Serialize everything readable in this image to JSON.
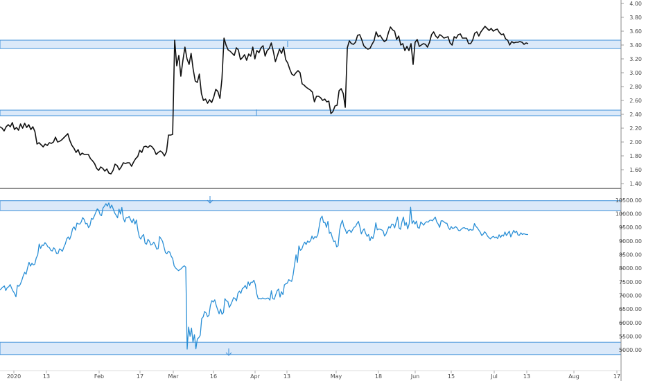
{
  "colors": {
    "upper_series": "#111111",
    "lower_series": "#2a8fd6",
    "zone_fill": "#dbe9f9",
    "zone_stroke": "#3d8fd9",
    "axis_line": "#888888",
    "divider": "#222222"
  },
  "chart_data": [
    {
      "type": "line",
      "panel": "upper",
      "series": [
        {
          "values": [
            2.22,
            2.2,
            2.16,
            2.22,
            2.25,
            2.22,
            2.28,
            2.18,
            2.21,
            2.17,
            2.26,
            2.2,
            2.27,
            2.21,
            2.25,
            2.18,
            2.22,
            2.15,
            1.97,
            1.99,
            1.96,
            1.93,
            1.97,
            1.95,
            1.99,
            1.98,
            2.0,
            2.07,
            2.0,
            2.01,
            2.03,
            2.06,
            2.09,
            2.12,
            2.02,
            1.95,
            1.91,
            1.85,
            1.89,
            1.81,
            1.84,
            1.82,
            1.82,
            1.82,
            1.76,
            1.73,
            1.69,
            1.62,
            1.59,
            1.64,
            1.62,
            1.58,
            1.61,
            1.55,
            1.54,
            1.59,
            1.68,
            1.66,
            1.6,
            1.64,
            1.7,
            1.69,
            1.7,
            1.7,
            1.65,
            1.71,
            1.76,
            1.79,
            1.88,
            1.85,
            1.93,
            1.94,
            1.92,
            1.95,
            1.93,
            1.89,
            1.82,
            1.85,
            1.87,
            1.85,
            1.8,
            1.86,
            2.1,
            2.1,
            2.11,
            3.47,
            3.1,
            3.25,
            2.95,
            3.18,
            3.37,
            3.2,
            3.12,
            3.28,
            3.05,
            2.88,
            2.86,
            2.98,
            2.7,
            2.6,
            2.62,
            2.56,
            2.61,
            2.57,
            2.65,
            2.76,
            2.73,
            2.63,
            2.91,
            3.5,
            3.4,
            3.33,
            3.31,
            3.28,
            3.25,
            3.36,
            3.33,
            3.19,
            3.22,
            3.26,
            3.18,
            3.27,
            3.24,
            3.37,
            3.2,
            3.32,
            3.29,
            3.36,
            3.39,
            3.24,
            3.32,
            3.35,
            3.43,
            3.31,
            3.16,
            3.25,
            3.34,
            3.28,
            3.37,
            3.19,
            3.14,
            3.05,
            2.98,
            2.96,
            3.0,
            3.03,
            3.0,
            2.84,
            2.82,
            2.79,
            2.77,
            2.75,
            2.72,
            2.58,
            2.66,
            2.66,
            2.64,
            2.6,
            2.62,
            2.58,
            2.59,
            2.41,
            2.44,
            2.52,
            2.53,
            2.74,
            2.77,
            2.7,
            2.5,
            3.36,
            3.46,
            3.42,
            3.41,
            3.44,
            3.54,
            3.55,
            3.48,
            3.39,
            3.36,
            3.34,
            3.35,
            3.41,
            3.46,
            3.59,
            3.52,
            3.54,
            3.49,
            3.45,
            3.47,
            3.58,
            3.66,
            3.62,
            3.6,
            3.48,
            3.53,
            3.4,
            3.42,
            3.32,
            3.38,
            3.32,
            3.42,
            3.12,
            3.44,
            3.48,
            3.38,
            3.4,
            3.42,
            3.41,
            3.37,
            3.44,
            3.55,
            3.59,
            3.53,
            3.5,
            3.55,
            3.53,
            3.5,
            3.51,
            3.52,
            3.43,
            3.4,
            3.52,
            3.5,
            3.55,
            3.56,
            3.5,
            3.5,
            3.5,
            3.42,
            3.42,
            3.47,
            3.57,
            3.59,
            3.53,
            3.59,
            3.63,
            3.67,
            3.64,
            3.61,
            3.64,
            3.6,
            3.62,
            3.63,
            3.58,
            3.55,
            3.56,
            3.49,
            3.47,
            3.4,
            3.45,
            3.43,
            3.44,
            3.44,
            3.45,
            3.44,
            3.41,
            3.43,
            3.42
          ]
        }
      ],
      "ylim": [
        1.4,
        4.0
      ],
      "yticks": [
        "4.00",
        "3.80",
        "3.60",
        "3.40",
        "3.20",
        "3.00",
        "2.80",
        "2.60",
        "2.40",
        "2.20",
        "2.00",
        "1.80",
        "1.60",
        "1.40"
      ],
      "zones": [
        {
          "low": 3.35,
          "high": 3.47
        },
        {
          "low": 2.38,
          "high": 2.46
        }
      ]
    },
    {
      "type": "line",
      "panel": "lower",
      "series": [
        {
          "values": [
            7200,
            7260,
            7310,
            7350,
            7180,
            7290,
            7320,
            7400,
            7270,
            7160,
            7080,
            6950,
            7370,
            7340,
            7410,
            7550,
            7720,
            7850,
            7780,
            8020,
            8220,
            8080,
            8180,
            8120,
            8150,
            8380,
            8480,
            8890,
            8730,
            8850,
            8840,
            8940,
            8880,
            8780,
            8760,
            8660,
            8630,
            8750,
            8690,
            8540,
            8540,
            8710,
            8680,
            8620,
            8770,
            8890,
            9080,
            9150,
            9060,
            9210,
            9450,
            9520,
            9400,
            9660,
            9630,
            9620,
            9700,
            9860,
            9790,
            9630,
            9650,
            9490,
            9570,
            9830,
            9800,
            9920,
            10050,
            10180,
            10130,
            9970,
            9930,
            10210,
            10280,
            10370,
            10280,
            10400,
            10210,
            10320,
            10180,
            10030,
            9950,
            9850,
            10170,
            9990,
            10230,
            9840,
            9700,
            9860,
            9850,
            9900,
            9780,
            9670,
            9810,
            9620,
            9770,
            9400,
            9150,
            9070,
            9180,
            9240,
            8920,
            8880,
            9060,
            8990,
            8850,
            8880,
            8960,
            8850,
            8700,
            8720,
            9160,
            9080,
            8990,
            8780,
            8580,
            8530,
            8620,
            8590,
            8440,
            8360,
            8090,
            8010,
            7960,
            7910,
            7950,
            7990,
            8050,
            8090,
            8040,
            5030,
            5840,
            5500,
            5800,
            5280,
            5560,
            5040,
            5400,
            5450,
            5540,
            6150,
            6210,
            6410,
            6360,
            6220,
            6270,
            6630,
            6810,
            6760,
            6840,
            6640,
            6480,
            6330,
            6500,
            6310,
            6370,
            6880,
            6800,
            6780,
            6560,
            6660,
            6780,
            6920,
            6890,
            6800,
            7080,
            7160,
            7080,
            7250,
            7290,
            7370,
            7250,
            7500,
            7360,
            7490,
            7480,
            7560,
            7400,
            7050,
            6870,
            6890,
            6870,
            6910,
            6880,
            6870,
            6900,
            6900,
            6830,
            7170,
            6880,
            6860,
            7020,
            7170,
            7240,
            6940,
            7140,
            7030,
            7390,
            7430,
            7450,
            7580,
            7540,
            7520,
            7760,
            8140,
            8490,
            8210,
            8820,
            8660,
            8700,
            8860,
            8960,
            8870,
            9000,
            8950,
            9010,
            9180,
            9070,
            9160,
            9130,
            9230,
            9530,
            9830,
            9910,
            9680,
            9680,
            9500,
            9720,
            9280,
            9320,
            9130,
            8980,
            9000,
            8780,
            8830,
            9390,
            9630,
            9760,
            9520,
            9420,
            9270,
            9380,
            9400,
            9310,
            9410,
            9500,
            9530,
            9640,
            9720,
            9520,
            9260,
            9380,
            9450,
            9280,
            9170,
            9240,
            9010,
            9160,
            9090,
            9300,
            9670,
            9410,
            9440,
            9430,
            9410,
            9370,
            9180,
            9250,
            9390,
            9530,
            9480,
            9620,
            9610,
            9480,
            9690,
            9880,
            9480,
            9430,
            9700,
            9880,
            9570,
            9680,
            9440,
            9630,
            10240,
            9640,
            9740,
            9620,
            9730,
            9490,
            9470,
            9700,
            9640,
            9580,
            9670,
            9710,
            9690,
            9750,
            9770,
            9740,
            9810,
            9880,
            9700,
            9620,
            9500,
            9740,
            9740,
            9700,
            9660,
            9650,
            9490,
            9420,
            9530,
            9460,
            9480,
            9530,
            9480,
            9390,
            9380,
            9440,
            9480,
            9490,
            9450,
            9460,
            9380,
            9430,
            9400,
            9410,
            9640,
            9540,
            9480,
            9400,
            9320,
            9200,
            9250,
            9340,
            9280,
            9180,
            9120,
            9080,
            9140,
            9170,
            9120,
            9150,
            9090,
            9230,
            9130,
            9220,
            9180,
            9330,
            9200,
            9280,
            9360,
            9150,
            9270,
            9390,
            9310,
            9360,
            9220,
            9210,
            9300,
            9240,
            9270,
            9250,
            9240,
            9240
          ]
        }
      ],
      "ylim": [
        4800,
        10600
      ],
      "yticks": [
        "10500.00",
        "10000.00",
        "9500.00",
        "9000.00",
        "8500.00",
        "8000.00",
        "7500.00",
        "7000.00",
        "6500.00",
        "6000.00",
        "5500.00",
        "5000.00"
      ],
      "zones": [
        {
          "low": 10120,
          "high": 10480
        },
        {
          "low": 4830,
          "high": 5280
        }
      ]
    }
  ],
  "x_axis": {
    "labels": [
      "2020",
      "13",
      "Feb",
      "17",
      "Mar",
      "16",
      "Apr",
      "13",
      "May",
      "18",
      "Jun",
      "15",
      "Jul",
      "13",
      "Aug",
      "17"
    ]
  }
}
